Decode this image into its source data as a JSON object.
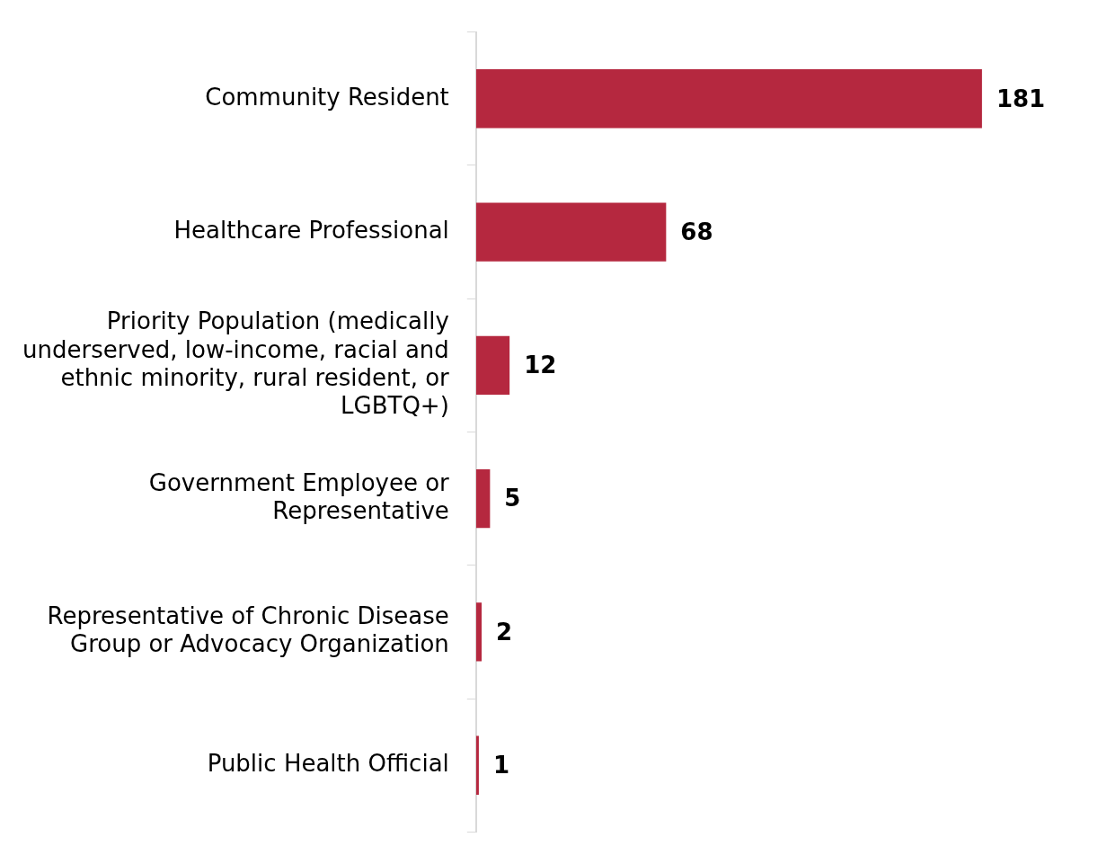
{
  "chart_data": {
    "type": "bar",
    "orientation": "horizontal",
    "categories": [
      "Community Resident",
      "Healthcare Professional",
      "Priority Population (medically underserved, low-income, racial and ethnic minority, rural resident, or LGBTQ+)",
      "Government Employee or Representative",
      "Representative of Chronic Disease Group or Advocacy Organization",
      "Public Health Official"
    ],
    "values": [
      181,
      68,
      12,
      5,
      2,
      1
    ],
    "color": "#b5283f",
    "data_labels": true,
    "grid": false,
    "legend": false
  }
}
